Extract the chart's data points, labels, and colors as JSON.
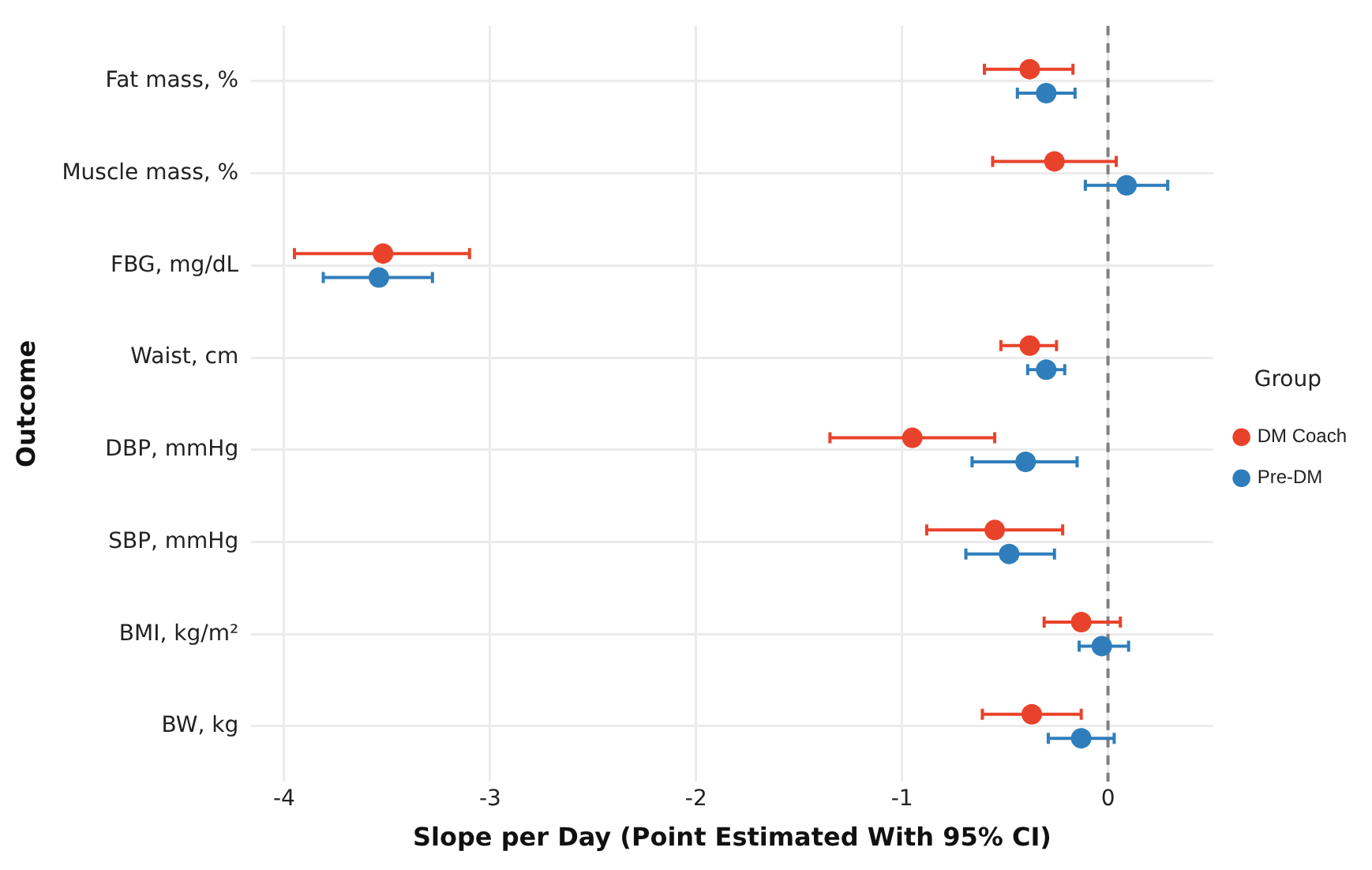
{
  "chart_data": {
    "type": "scatter",
    "orientation": "horizontal",
    "xlabel": "Slope per Day (Point Estimated With 95% CI)",
    "ylabel": "Outcome",
    "legend_title": "Group",
    "legend": "right",
    "grid": true,
    "marker": "circle",
    "categories": [
      "Fat mass, %",
      "Muscle mass, %",
      "FBG, mg/dL",
      "Waist, cm",
      "DBP, mmHg",
      "SBP, mmHg",
      "BMI, kg/m²",
      "BW, kg"
    ],
    "xlim": [
      -4.16,
      0.51
    ],
    "xticks": [
      -4,
      -3,
      -2,
      -1,
      0
    ],
    "ref_lines": [
      {
        "axis": "x",
        "value": 0,
        "color": "#808080",
        "line_style": "dashed"
      }
    ],
    "series": [
      {
        "name": "DM Coach",
        "color": "#e8432a",
        "values": [
          -0.38,
          -0.26,
          -3.52,
          -0.38,
          -0.95,
          -0.55,
          -0.13,
          -0.37
        ],
        "errors": [
          [
            -0.6,
            -0.17
          ],
          [
            -0.56,
            0.04
          ],
          [
            -3.95,
            -3.1
          ],
          [
            -0.52,
            -0.25
          ],
          [
            -1.35,
            -0.55
          ],
          [
            -0.88,
            -0.22
          ],
          [
            -0.31,
            0.06
          ],
          [
            -0.61,
            -0.13
          ]
        ]
      },
      {
        "name": "Pre-DM",
        "color": "#2f7ebb",
        "values": [
          -0.3,
          0.09,
          -3.54,
          -0.3,
          -0.4,
          -0.48,
          -0.03,
          -0.13
        ],
        "errors": [
          [
            -0.44,
            -0.16
          ],
          [
            -0.11,
            0.29
          ],
          [
            -3.81,
            -3.28
          ],
          [
            -0.39,
            -0.21
          ],
          [
            -0.66,
            -0.15
          ],
          [
            -0.69,
            -0.26
          ],
          [
            -0.14,
            0.1
          ],
          [
            -0.29,
            0.03
          ]
        ]
      }
    ]
  }
}
